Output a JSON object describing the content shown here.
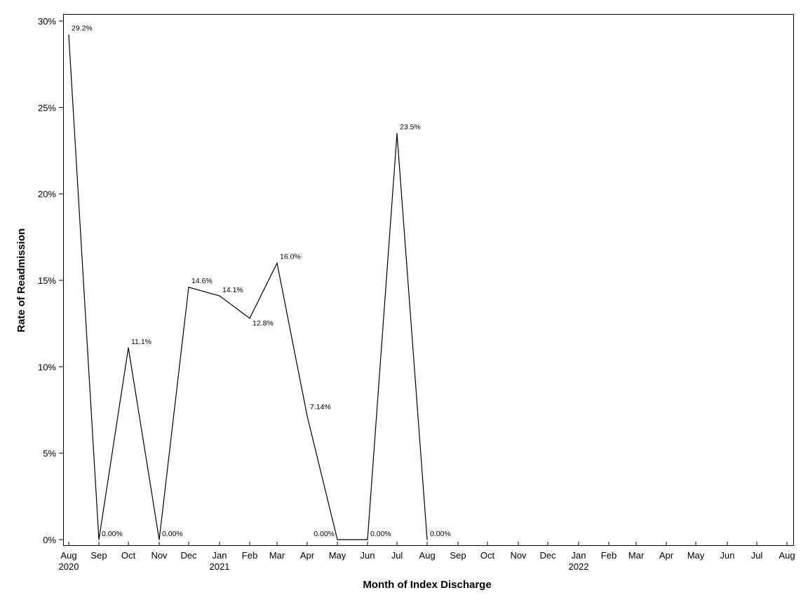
{
  "chart_data": {
    "type": "line",
    "title": "",
    "xlabel": "Month of Index Discharge",
    "ylabel": "Rate of Readmission",
    "ylim": [
      0,
      30
    ],
    "y_ticks": [
      0,
      5,
      10,
      15,
      20,
      25,
      30
    ],
    "y_tick_labels": [
      "0%",
      "5%",
      "10%",
      "15%",
      "20%",
      "25%",
      "30%"
    ],
    "x_tick_labels": [
      "Aug",
      "Sep",
      "Oct",
      "Nov",
      "Dec",
      "Jan",
      "Feb",
      "Mar",
      "Apr",
      "May",
      "Jun",
      "Jul",
      "Aug",
      "Sep",
      "Oct",
      "Nov",
      "Dec",
      "Jan",
      "Feb",
      "Mar",
      "Apr",
      "May",
      "Jun",
      "Jul",
      "Aug"
    ],
    "year_labels": [
      {
        "month_index": 0,
        "text": "2020"
      },
      {
        "month_index": 5,
        "text": "2021"
      },
      {
        "month_index": 17,
        "text": "2022"
      }
    ],
    "grid": false,
    "legend": "none",
    "series": [
      {
        "x": [
          "2020-08",
          "2020-09",
          "2020-10",
          "2020-11",
          "2020-12",
          "2021-01",
          "2021-02",
          "2021-03",
          "2021-04",
          "2021-05",
          "2021-06",
          "2021-07",
          "2021-08"
        ],
        "values": [
          29.2,
          0.0,
          11.1,
          0.0,
          14.6,
          14.1,
          12.8,
          16.0,
          7.14,
          0.0,
          0.0,
          23.5,
          0.0
        ],
        "labels": [
          "29.2%",
          "0.00%",
          "11.1%",
          "0.00%",
          "14.6%",
          "14.1%",
          "12.8%",
          "16.0%",
          "7.14%",
          "0.00%",
          "0.00%",
          "23.5%",
          "0.00%"
        ]
      }
    ],
    "line_color": "#000000"
  }
}
